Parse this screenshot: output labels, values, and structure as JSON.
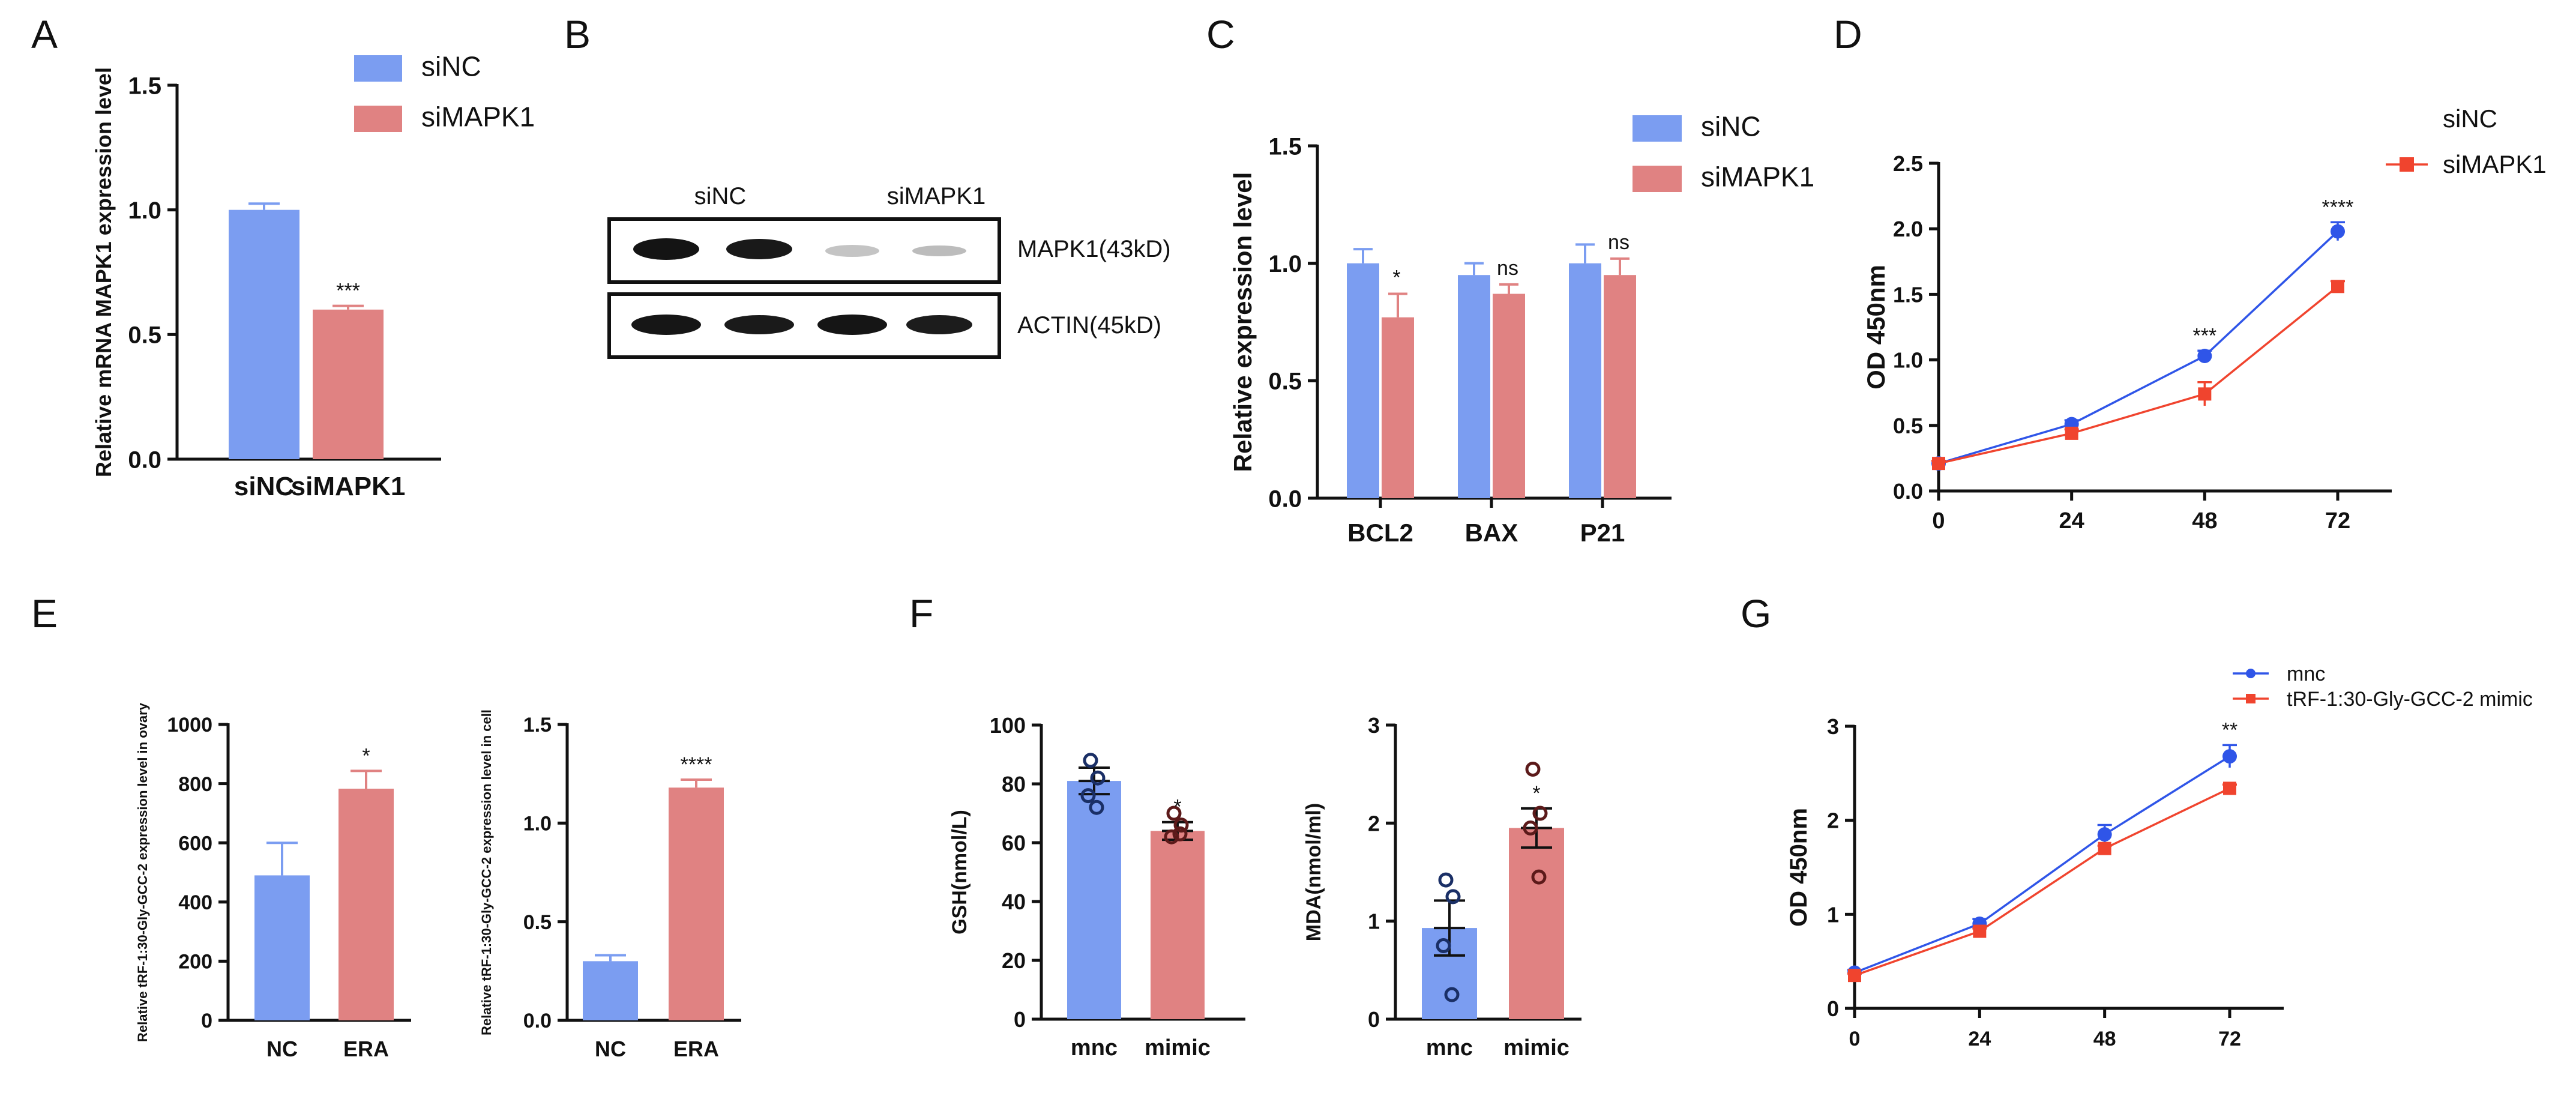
{
  "colors": {
    "blue": "#7B9DF1",
    "red": "#E08282",
    "blue_line": "#2F55E8",
    "red_line": "#F0442E",
    "axis": "#111111"
  },
  "panels": {
    "A": "A",
    "B": "B",
    "C": "C",
    "D": "D",
    "E": "E",
    "F": "F",
    "G": "G"
  },
  "chart_data": [
    {
      "id": "A",
      "type": "bar",
      "title": "",
      "ylabel": "Relative mRNA MAPK1  expression level",
      "categories": [
        "siNC",
        "siMAPK1"
      ],
      "values": [
        1.0,
        0.6
      ],
      "errors": [
        0.025,
        0.015
      ],
      "significance": [
        "",
        "***"
      ],
      "ylim": [
        0,
        1.5
      ],
      "yticks": [
        "0.0",
        "0.5",
        "1.0",
        "1.5"
      ],
      "legend": [
        "siNC",
        "siMAPK1"
      ]
    },
    {
      "id": "C",
      "type": "bar",
      "ylabel": "Relative  expression level",
      "categories": [
        "BCL2",
        "BAX",
        "P21"
      ],
      "series": [
        {
          "name": "siNC",
          "values": [
            1.0,
            0.95,
            1.0
          ],
          "errors": [
            0.06,
            0.05,
            0.08
          ]
        },
        {
          "name": "siMAPK1",
          "values": [
            0.77,
            0.87,
            0.95
          ],
          "errors": [
            0.1,
            0.04,
            0.07
          ]
        }
      ],
      "significance": [
        "*",
        "ns",
        "ns"
      ],
      "ylim": [
        0,
        1.5
      ],
      "yticks": [
        "0.0",
        "0.5",
        "1.0",
        "1.5"
      ],
      "legend": [
        "siNC",
        "siMAPK1"
      ]
    },
    {
      "id": "D",
      "type": "line",
      "ylabel": "OD 450nm",
      "x": [
        0,
        24,
        48,
        72
      ],
      "xticks": [
        "0",
        "24",
        "48",
        "72"
      ],
      "series": [
        {
          "name": "siNC",
          "values": [
            0.21,
            0.51,
            1.03,
            1.98
          ],
          "errors": [
            0.02,
            0.03,
            0.04,
            0.07
          ]
        },
        {
          "name": "siMAPK1",
          "values": [
            0.21,
            0.44,
            0.74,
            1.56
          ],
          "errors": [
            0.02,
            0.03,
            0.09,
            0.04
          ]
        }
      ],
      "significance": [
        "",
        "",
        "***",
        "****"
      ],
      "ylim": [
        0,
        2.5
      ],
      "yticks": [
        "0.0",
        "0.5",
        "1.0",
        "1.5",
        "2.0",
        "2.5"
      ],
      "legend": [
        "siNC",
        "siMAPK1"
      ]
    },
    {
      "id": "E1",
      "type": "bar",
      "ylabel": "Relative  tRF-1:30-Gly-GCC-2 expression level in ovary",
      "categories": [
        "NC",
        "ERA"
      ],
      "values": [
        490,
        783
      ],
      "errors": [
        110,
        60
      ],
      "significance": [
        "",
        "*"
      ],
      "ylim": [
        0,
        1000
      ],
      "yticks": [
        "0",
        "200",
        "400",
        "600",
        "800",
        "1000"
      ]
    },
    {
      "id": "E2",
      "type": "bar",
      "ylabel": "Relative  tRF-1:30-Gly-GCC-2 expression level in cell",
      "categories": [
        "NC",
        "ERA"
      ],
      "values": [
        0.3,
        1.18
      ],
      "errors": [
        0.03,
        0.04
      ],
      "significance": [
        "",
        "****"
      ],
      "ylim": [
        0,
        1.5
      ],
      "yticks": [
        "0.0",
        "0.5",
        "1.0",
        "1.5"
      ]
    },
    {
      "id": "F1",
      "type": "bar",
      "ylabel": "GSH(nmol/L)",
      "categories": [
        "mnc",
        "mimic"
      ],
      "values": [
        81,
        64
      ],
      "errors": [
        4.5,
        3
      ],
      "points": [
        [
          88,
          82,
          76,
          72
        ],
        [
          70,
          66,
          62,
          63
        ]
      ],
      "significance": [
        "",
        "*"
      ],
      "ylim": [
        0,
        100
      ],
      "yticks": [
        "0",
        "20",
        "40",
        "60",
        "80",
        "100"
      ]
    },
    {
      "id": "F2",
      "type": "bar",
      "ylabel": "MDA(nmol/ml)",
      "categories": [
        "mnc",
        "mimic"
      ],
      "values": [
        0.93,
        1.95
      ],
      "errors": [
        0.28,
        0.2
      ],
      "points": [
        [
          1.42,
          1.25,
          0.75,
          0.25
        ],
        [
          2.55,
          2.1,
          1.95,
          1.45
        ]
      ],
      "significance": [
        "",
        "*"
      ],
      "ylim": [
        0,
        3
      ],
      "yticks": [
        "0",
        "1",
        "2",
        "3"
      ]
    },
    {
      "id": "G",
      "type": "line",
      "ylabel": "OD 450nm",
      "x": [
        0,
        24,
        48,
        72
      ],
      "xticks": [
        "0",
        "24",
        "48",
        "72"
      ],
      "series": [
        {
          "name": "mnc",
          "values": [
            0.38,
            0.9,
            1.85,
            2.68
          ],
          "errors": [
            0.03,
            0.05,
            0.1,
            0.12
          ]
        },
        {
          "name": "tRF-1:30-Gly-GCC-2 mimic",
          "values": [
            0.35,
            0.82,
            1.7,
            2.34
          ],
          "errors": [
            0.02,
            0.03,
            0.03,
            0.04
          ]
        }
      ],
      "significance": [
        "",
        "",
        "",
        "**"
      ],
      "ylim": [
        0,
        3
      ],
      "yticks": [
        "0",
        "1",
        "2",
        "3"
      ],
      "legend": [
        "mnc",
        "tRF-1:30-Gly-GCC-2 mimic"
      ]
    }
  ],
  "western_blot": {
    "lanes": [
      "siNC",
      "siMAPK1"
    ],
    "rows": [
      "MAPK1(43kD)",
      "ACTIN(45kD)"
    ]
  }
}
